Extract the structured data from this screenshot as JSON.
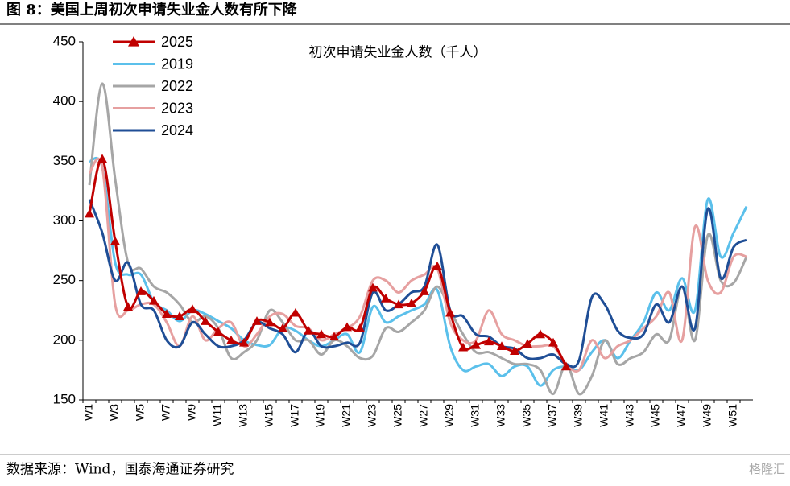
{
  "header": {
    "title": "图 8：美国上周初次申请失业金人数有所下降"
  },
  "footer": {
    "source": "数据来源：Wind，国泰海通证券研究",
    "watermark": "格隆汇"
  },
  "chart_data": {
    "type": "line",
    "subtitle": "初次申请失业金人数（千人）",
    "categories": [
      "W1",
      null,
      "W3",
      null,
      "W5",
      null,
      "W7",
      null,
      "W9",
      null,
      "W11",
      null,
      "W13",
      null,
      "W15",
      null,
      "W17",
      null,
      "W19",
      null,
      "W21",
      null,
      "W23",
      null,
      "W25",
      null,
      "W27",
      null,
      "W29",
      null,
      "W31",
      null,
      "W33",
      null,
      "W35",
      null,
      "W37",
      null,
      "W39",
      null,
      "W41",
      null,
      "W43",
      null,
      "W45",
      null,
      "W47",
      null,
      "W49",
      null,
      "W51",
      null
    ],
    "ylim": [
      150,
      450
    ],
    "yticks": [
      150,
      200,
      250,
      300,
      350,
      400,
      450
    ],
    "legend": "top-left",
    "series": [
      {
        "name": "2025",
        "color": "#c00000",
        "marker": "triangle",
        "values": [
          306,
          352,
          283,
          228,
          241,
          233,
          222,
          220,
          226,
          216,
          207,
          200,
          198,
          216,
          215,
          210,
          223,
          208,
          205,
          203,
          211,
          210,
          244,
          235,
          230,
          231,
          241,
          262,
          223,
          194,
          196,
          199,
          195,
          191,
          197,
          205,
          198,
          178,
          null,
          null,
          null,
          null,
          null,
          null,
          null,
          null,
          null,
          null,
          null,
          null,
          null,
          null
        ]
      },
      {
        "name": "2019",
        "color": "#5bc0eb",
        "values": [
          350,
          345,
          265,
          255,
          255,
          232,
          225,
          216,
          225,
          222,
          216,
          210,
          200,
          196,
          196,
          210,
          208,
          200,
          195,
          200,
          205,
          190,
          228,
          215,
          220,
          225,
          230,
          242,
          195,
          175,
          178,
          180,
          170,
          178,
          178,
          162,
          175,
          178,
          175,
          190,
          200,
          185,
          200,
          215,
          240,
          225,
          252,
          225,
          318,
          270,
          290,
          312
        ]
      },
      {
        "name": "2022",
        "color": "#a6a6a6",
        "values": [
          330,
          415,
          335,
          265,
          260,
          245,
          240,
          230,
          215,
          220,
          210,
          185,
          190,
          200,
          225,
          215,
          200,
          200,
          188,
          200,
          195,
          185,
          187,
          210,
          207,
          215,
          225,
          245,
          225,
          205,
          190,
          190,
          185,
          180,
          180,
          175,
          155,
          180,
          155,
          170,
          200,
          180,
          185,
          190,
          205,
          200,
          245,
          200,
          288,
          250,
          248,
          270
        ]
      },
      {
        "name": "2023",
        "color": "#e6a0a0",
        "values": [
          340,
          345,
          230,
          225,
          230,
          230,
          215,
          195,
          220,
          200,
          210,
          215,
          195,
          205,
          220,
          222,
          212,
          210,
          200,
          205,
          210,
          220,
          250,
          250,
          240,
          250,
          255,
          260,
          215,
          200,
          200,
          225,
          205,
          200,
          195,
          195,
          195,
          180,
          175,
          200,
          185,
          195,
          200,
          210,
          220,
          240,
          200,
          295,
          250,
          240,
          270,
          270
        ]
      },
      {
        "name": "2024",
        "color": "#1f4e96",
        "values": [
          318,
          290,
          250,
          265,
          230,
          225,
          200,
          195,
          215,
          205,
          195,
          195,
          200,
          215,
          210,
          205,
          190,
          208,
          195,
          195,
          198,
          198,
          240,
          225,
          230,
          240,
          245,
          280,
          225,
          220,
          205,
          203,
          195,
          193,
          185,
          185,
          188,
          180,
          183,
          236,
          230,
          208,
          202,
          205,
          230,
          215,
          245,
          210,
          310,
          252,
          278,
          284
        ]
      }
    ]
  }
}
